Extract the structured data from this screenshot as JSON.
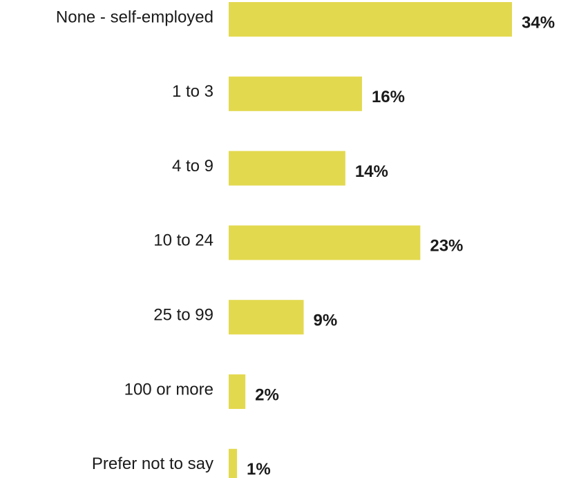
{
  "chart_data": {
    "type": "bar",
    "orientation": "horizontal",
    "categories": [
      "None - self-employed",
      "1 to 3",
      "4 to 9",
      "10 to 24",
      "25 to 99",
      "100 or more",
      "Prefer not to say"
    ],
    "values": [
      34,
      16,
      14,
      23,
      9,
      2,
      1
    ],
    "value_labels": [
      "34%",
      "16%",
      "14%",
      "23%",
      "9%",
      "2%",
      "1%"
    ],
    "unit": "%",
    "xlim": [
      0,
      34
    ],
    "grid": false,
    "legend": "none",
    "bar_color": "#e3d94f",
    "text_color": "#1a1a1a"
  }
}
